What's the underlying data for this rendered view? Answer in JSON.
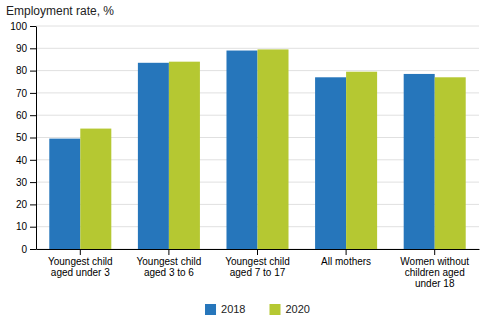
{
  "chart_data": {
    "type": "bar",
    "title": "Employment rate, %",
    "categories": [
      "Youngest child\naged under 3",
      "Youngest child\naged 3 to 6",
      "Youngest child\naged 7 to 17",
      "All mothers",
      "Women without\nchildren aged\nunder 18"
    ],
    "series": [
      {
        "name": "2018",
        "color": "#2676bb",
        "values": [
          49.5,
          83.5,
          89.0,
          77.0,
          78.5
        ]
      },
      {
        "name": "2020",
        "color": "#b5c832",
        "values": [
          54.0,
          84.0,
          89.5,
          79.5,
          77.0
        ]
      }
    ],
    "ylim": [
      0,
      100
    ],
    "yticks": [
      0,
      10,
      20,
      30,
      40,
      50,
      60,
      70,
      80,
      90,
      100
    ],
    "grid": true,
    "legend": "bottom"
  }
}
